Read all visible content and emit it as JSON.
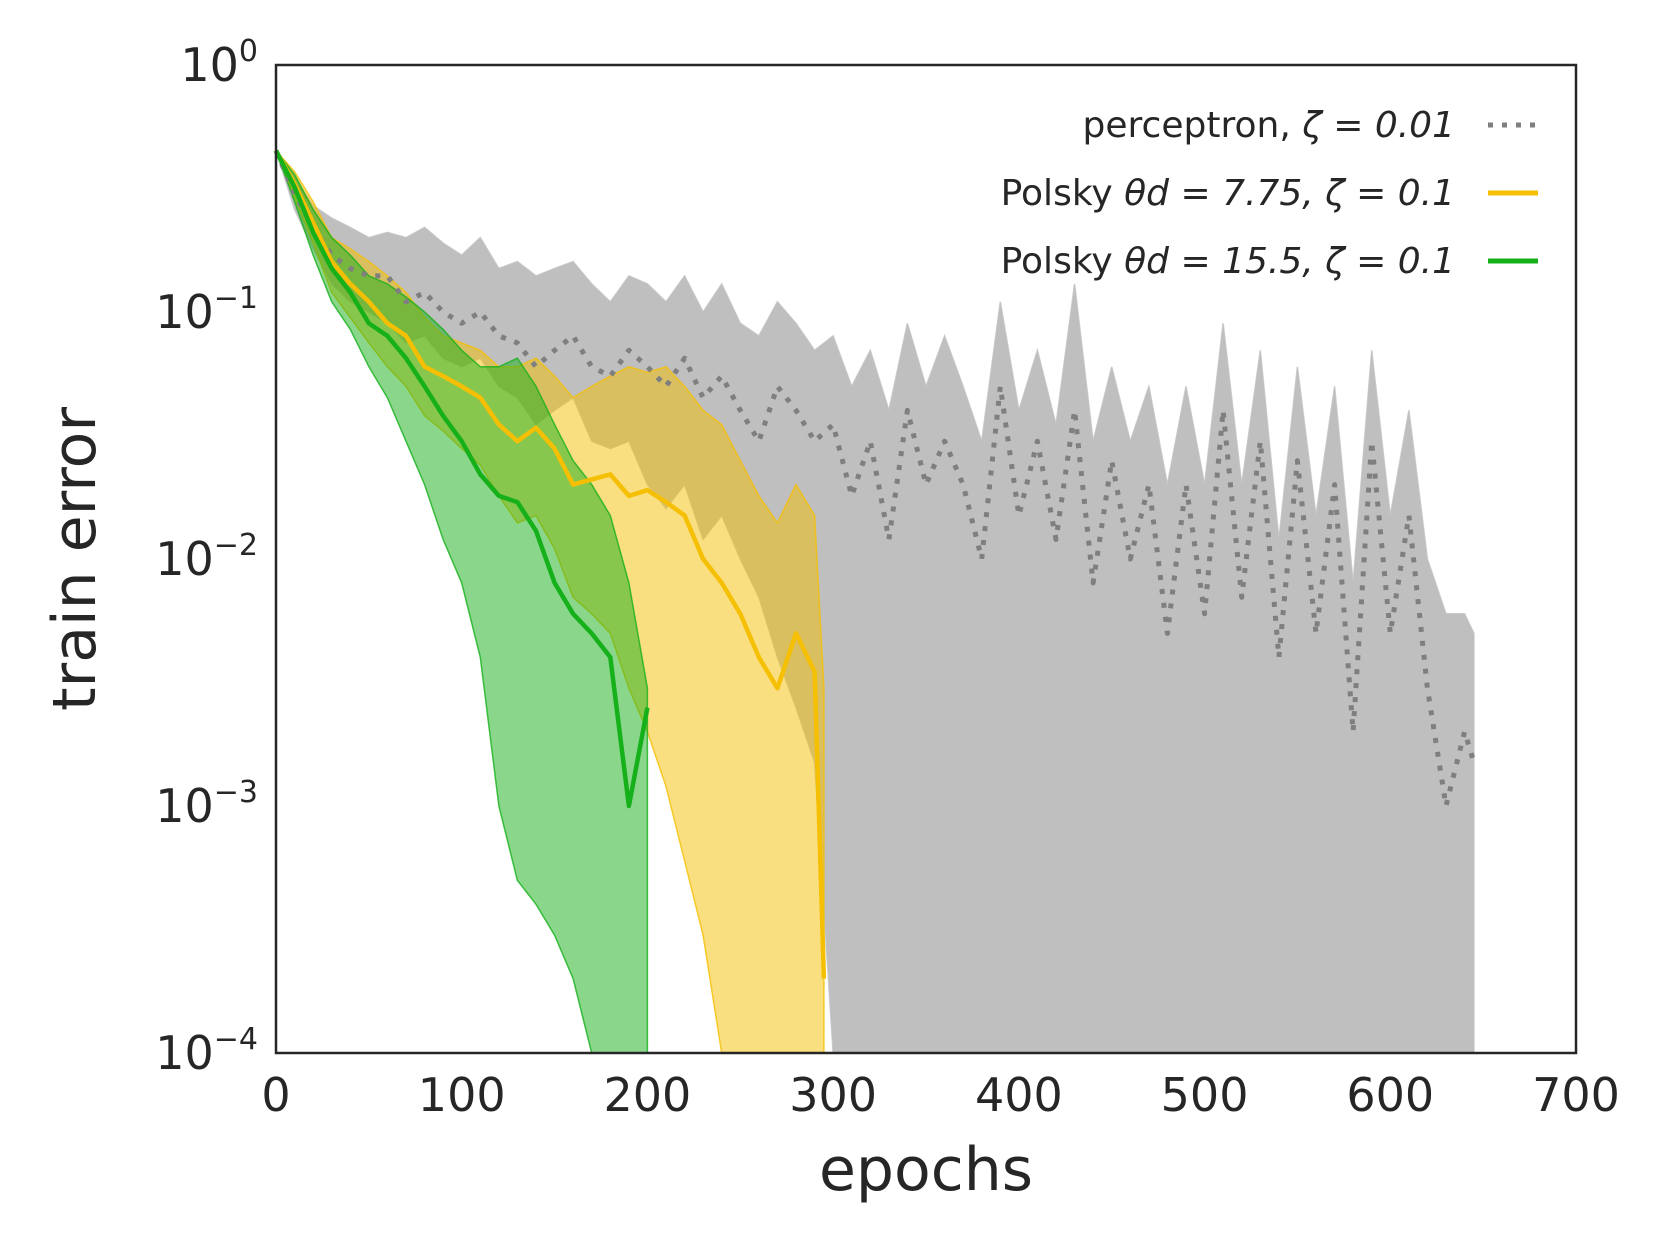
{
  "chart_data": {
    "type": "line",
    "title": "",
    "xlabel": "epochs",
    "ylabel": "train error",
    "xscale": "linear",
    "yscale": "log",
    "xlim": [
      0,
      700
    ],
    "ylim": [
      0.0001,
      1
    ],
    "xticks": [
      "0",
      "100",
      "200",
      "300",
      "400",
      "500",
      "600",
      "700"
    ],
    "yticks": [
      {
        "base": "10",
        "exp": "0"
      },
      {
        "base": "10",
        "exp": "−1"
      },
      {
        "base": "10",
        "exp": "−2"
      },
      {
        "base": "10",
        "exp": "−3"
      },
      {
        "base": "10",
        "exp": "−4"
      }
    ],
    "grid": false,
    "legend_position": "top-right",
    "series": [
      {
        "name": "perceptron",
        "label_prefix": "perceptron, ",
        "label_math": "ζ = 0.01",
        "color": "#7f7f7f",
        "fill_color": "#bfbfbf",
        "style": "dotted",
        "x": [
          0,
          10,
          20,
          30,
          40,
          50,
          60,
          70,
          80,
          90,
          100,
          110,
          120,
          130,
          140,
          150,
          160,
          170,
          180,
          190,
          200,
          210,
          220,
          230,
          240,
          250,
          260,
          270,
          280,
          290,
          300,
          310,
          320,
          330,
          340,
          350,
          360,
          370,
          380,
          390,
          400,
          410,
          420,
          430,
          440,
          450,
          460,
          470,
          480,
          490,
          500,
          510,
          520,
          530,
          540,
          550,
          560,
          570,
          580,
          590,
          600,
          610,
          620,
          630,
          640,
          645
        ],
        "y": [
          0.45,
          0.3,
          0.22,
          0.17,
          0.15,
          0.14,
          0.14,
          0.11,
          0.12,
          0.1,
          0.09,
          0.1,
          0.08,
          0.075,
          0.06,
          0.07,
          0.08,
          0.06,
          0.055,
          0.07,
          0.06,
          0.05,
          0.065,
          0.045,
          0.055,
          0.04,
          0.03,
          0.05,
          0.04,
          0.03,
          0.035,
          0.018,
          0.03,
          0.012,
          0.04,
          0.02,
          0.03,
          0.02,
          0.01,
          0.05,
          0.015,
          0.03,
          0.012,
          0.04,
          0.008,
          0.025,
          0.01,
          0.02,
          0.005,
          0.02,
          0.006,
          0.04,
          0.007,
          0.03,
          0.004,
          0.025,
          0.005,
          0.02,
          0.002,
          0.03,
          0.005,
          0.015,
          0.003,
          0.001,
          0.002,
          0.0015
        ],
        "lower": [
          0.45,
          0.26,
          0.18,
          0.13,
          0.11,
          0.1,
          0.09,
          0.075,
          0.08,
          0.065,
          0.06,
          0.065,
          0.05,
          0.045,
          0.035,
          0.04,
          0.045,
          0.03,
          0.028,
          0.03,
          0.02,
          0.016,
          0.02,
          0.012,
          0.015,
          0.01,
          0.007,
          0.004,
          0.0025,
          0.0015,
          0.0001,
          0.0001,
          0.0001,
          0.0001,
          0.0001,
          0.0001,
          0.0001,
          0.0001,
          0.0001,
          0.0001,
          0.0001,
          0.0001,
          0.0001,
          0.0001,
          0.0001,
          0.0001,
          0.0001,
          0.0001,
          0.0001,
          0.0001,
          0.0001,
          0.0001,
          0.0001,
          0.0001,
          0.0001,
          0.0001,
          0.0001,
          0.0001,
          0.0001,
          0.0001,
          0.0001,
          0.0001,
          0.0001,
          0.0001,
          0.0001,
          0.0001
        ],
        "upper": [
          0.45,
          0.35,
          0.27,
          0.24,
          0.22,
          0.2,
          0.21,
          0.2,
          0.22,
          0.19,
          0.17,
          0.2,
          0.15,
          0.16,
          0.14,
          0.15,
          0.16,
          0.13,
          0.11,
          0.14,
          0.13,
          0.11,
          0.14,
          0.1,
          0.13,
          0.09,
          0.08,
          0.11,
          0.09,
          0.07,
          0.08,
          0.05,
          0.07,
          0.04,
          0.09,
          0.05,
          0.08,
          0.05,
          0.03,
          0.11,
          0.04,
          0.07,
          0.035,
          0.13,
          0.03,
          0.06,
          0.03,
          0.05,
          0.02,
          0.05,
          0.02,
          0.09,
          0.02,
          0.07,
          0.012,
          0.06,
          0.015,
          0.05,
          0.008,
          0.07,
          0.015,
          0.04,
          0.01,
          0.006,
          0.006,
          0.005
        ]
      },
      {
        "name": "Polsky 7.75",
        "label_prefix": "Polsky ",
        "label_math": "θd = 7.75, ζ = 0.1",
        "color": "#f5bf03",
        "fill_color": "#f5bf03",
        "style": "solid",
        "x": [
          0,
          10,
          20,
          30,
          40,
          50,
          60,
          70,
          80,
          90,
          100,
          110,
          120,
          130,
          140,
          150,
          160,
          170,
          180,
          190,
          200,
          210,
          220,
          230,
          240,
          250,
          260,
          270,
          280,
          290,
          295
        ],
        "y": [
          0.45,
          0.33,
          0.23,
          0.16,
          0.13,
          0.11,
          0.09,
          0.08,
          0.06,
          0.055,
          0.05,
          0.045,
          0.035,
          0.03,
          0.034,
          0.028,
          0.02,
          0.021,
          0.022,
          0.018,
          0.019,
          0.017,
          0.015,
          0.01,
          0.008,
          0.006,
          0.004,
          0.003,
          0.005,
          0.0035,
          0.0002
        ],
        "lower": [
          0.45,
          0.29,
          0.19,
          0.12,
          0.095,
          0.075,
          0.06,
          0.05,
          0.038,
          0.033,
          0.028,
          0.024,
          0.018,
          0.014,
          0.015,
          0.011,
          0.007,
          0.006,
          0.005,
          0.003,
          0.002,
          0.0012,
          0.0006,
          0.0003,
          0.0001,
          0.0001,
          0.0001,
          0.0001,
          0.0001,
          0.0001,
          0.0001
        ],
        "upper": [
          0.45,
          0.37,
          0.28,
          0.2,
          0.18,
          0.16,
          0.14,
          0.12,
          0.095,
          0.08,
          0.075,
          0.07,
          0.06,
          0.06,
          0.065,
          0.055,
          0.045,
          0.05,
          0.055,
          0.06,
          0.057,
          0.06,
          0.05,
          0.04,
          0.035,
          0.025,
          0.018,
          0.014,
          0.02,
          0.015,
          0.003
        ]
      },
      {
        "name": "Polsky 15.5",
        "label_prefix": "Polsky ",
        "label_math": "θd = 15.5, ζ = 0.1",
        "color": "#15b01a",
        "fill_color": "#15b01a",
        "style": "solid",
        "x": [
          0,
          10,
          20,
          30,
          40,
          50,
          60,
          70,
          80,
          90,
          100,
          110,
          120,
          130,
          140,
          150,
          160,
          170,
          180,
          190,
          200
        ],
        "y": [
          0.45,
          0.32,
          0.21,
          0.15,
          0.12,
          0.09,
          0.08,
          0.065,
          0.05,
          0.038,
          0.03,
          0.022,
          0.018,
          0.017,
          0.013,
          0.008,
          0.006,
          0.005,
          0.004,
          0.001,
          0.0025
        ],
        "lower": [
          0.45,
          0.28,
          0.17,
          0.11,
          0.085,
          0.06,
          0.045,
          0.03,
          0.02,
          0.012,
          0.008,
          0.004,
          0.001,
          0.0005,
          0.0004,
          0.0003,
          0.0002,
          0.0001,
          0.0001,
          0.0001,
          0.0001
        ],
        "upper": [
          0.45,
          0.36,
          0.26,
          0.2,
          0.17,
          0.14,
          0.13,
          0.115,
          0.1,
          0.085,
          0.07,
          0.06,
          0.06,
          0.065,
          0.05,
          0.035,
          0.025,
          0.02,
          0.015,
          0.008,
          0.003
        ]
      }
    ]
  }
}
